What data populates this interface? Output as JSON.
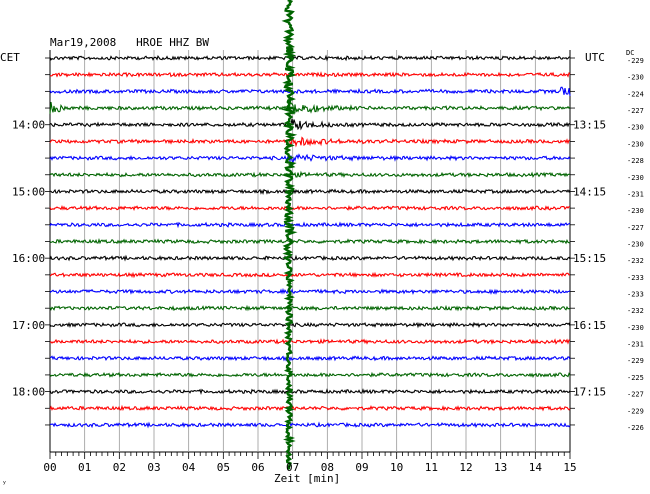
{
  "chart_data": {
    "type": "line",
    "title": "Mar19,2008   HROE HHZ BW",
    "xlabel": "Zeit [min]",
    "left_timezone": "CET",
    "right_timezone": "UTC",
    "dc_label": "DC",
    "xlim": [
      0,
      15
    ],
    "x_ticks": [
      "00",
      "01",
      "02",
      "03",
      "04",
      "05",
      "06",
      "07",
      "08",
      "09",
      "10",
      "11",
      "12",
      "13",
      "14",
      "15"
    ],
    "left_time_labels": [
      {
        "row": 4,
        "label": "14:00"
      },
      {
        "row": 8,
        "label": "15:00"
      },
      {
        "row": 12,
        "label": "16:00"
      },
      {
        "row": 16,
        "label": "17:00"
      },
      {
        "row": 20,
        "label": "18:00"
      }
    ],
    "right_time_labels": [
      {
        "row": 4,
        "label": "13:15"
      },
      {
        "row": 8,
        "label": "14:15"
      },
      {
        "row": 12,
        "label": "15:15"
      },
      {
        "row": 16,
        "label": "16:15"
      },
      {
        "row": 20,
        "label": "17:15"
      }
    ],
    "trace_colors": [
      "#000000",
      "#ff0000",
      "#0000ff",
      "#006400"
    ],
    "dc_offsets": [
      "-229",
      "-230",
      "-224",
      "-227",
      "-230",
      "-230",
      "-228",
      "-230",
      "-231",
      "-230",
      "-227",
      "-230",
      "-232",
      "-233",
      "-233",
      "-232",
      "-230",
      "-231",
      "-229",
      "-225",
      "-227",
      "-229",
      "-226"
    ],
    "event": {
      "onset_min": 6.9,
      "peak_row": 3,
      "coda_end_row": 7
    },
    "footer_mark": "ʸ"
  }
}
